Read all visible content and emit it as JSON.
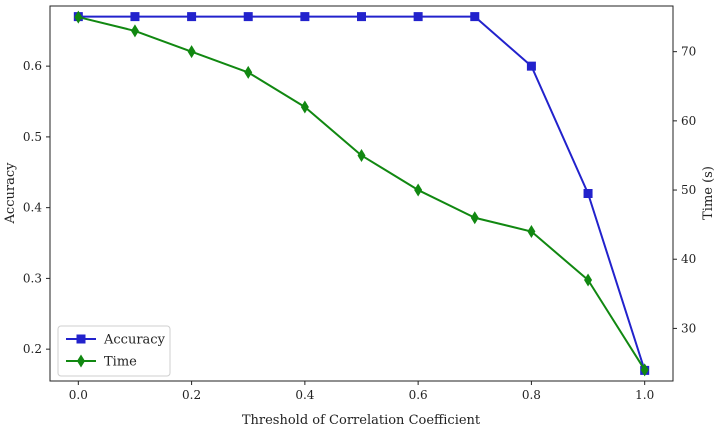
{
  "chart_data": {
    "type": "line",
    "xlabel": "Threshold of Correlation Coefficient",
    "ylabel": "Accuracy",
    "y2label": "Time (s)",
    "x": [
      0.0,
      0.1,
      0.2,
      0.3,
      0.4,
      0.5,
      0.6,
      0.7,
      0.8,
      0.9,
      1.0
    ],
    "xticks": [
      "0.0",
      "0.2",
      "0.4",
      "0.6",
      "0.8",
      "1.0"
    ],
    "xlim": [
      -0.05,
      1.05
    ],
    "ylim": [
      0.155,
      0.685
    ],
    "yticks": [
      "0.2",
      "0.3",
      "0.4",
      "0.5",
      "0.6"
    ],
    "y2lim": [
      22.4,
      76.6
    ],
    "y2ticks": [
      "30",
      "40",
      "50",
      "60",
      "70"
    ],
    "legend_position": "lower-left",
    "grid": false,
    "series": [
      {
        "name": "Accuracy",
        "axis": "left",
        "color": "#2222cc",
        "marker": "square",
        "values": [
          0.67,
          0.67,
          0.67,
          0.67,
          0.67,
          0.67,
          0.67,
          0.67,
          0.6,
          0.42,
          0.17
        ]
      },
      {
        "name": "Time",
        "axis": "right",
        "color": "#118811",
        "marker": "diamond",
        "values": [
          75,
          73,
          70,
          67,
          62,
          55,
          50,
          46,
          44,
          37,
          24
        ]
      }
    ]
  }
}
